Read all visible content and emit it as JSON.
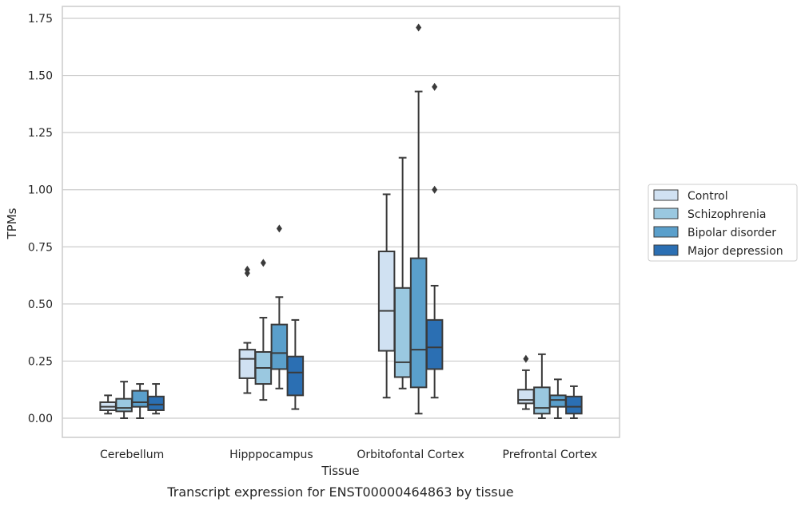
{
  "chart_data": {
    "type": "box",
    "caption": "Transcript expression for ENST00000464863 by tissue",
    "xlabel": "Tissue",
    "ylabel": "TPMs",
    "ylim": [
      -0.08,
      1.8
    ],
    "yticks": [
      "0.00",
      "0.25",
      "0.50",
      "0.75",
      "1.00",
      "1.25",
      "1.50",
      "1.75"
    ],
    "ytick_values": [
      0,
      0.25,
      0.5,
      0.75,
      1.0,
      1.25,
      1.5,
      1.75
    ],
    "grid": true,
    "legend_position": "right",
    "categories": [
      "Cerebellum",
      "Hipppocampus",
      "Orbitofontal Cortex",
      "Prefrontal Cortex"
    ],
    "series": [
      {
        "name": "Control",
        "color": "#d0e1f2",
        "boxes": [
          {
            "whisker_low": 0.02,
            "q1": 0.035,
            "median": 0.05,
            "q3": 0.07,
            "whisker_high": 0.1,
            "outliers": []
          },
          {
            "whisker_low": 0.11,
            "q1": 0.175,
            "median": 0.26,
            "q3": 0.3,
            "whisker_high": 0.33,
            "outliers": [
              0.635,
              0.65
            ]
          },
          {
            "whisker_low": 0.09,
            "q1": 0.295,
            "median": 0.47,
            "q3": 0.73,
            "whisker_high": 0.98,
            "outliers": []
          },
          {
            "whisker_low": 0.04,
            "q1": 0.065,
            "median": 0.08,
            "q3": 0.125,
            "whisker_high": 0.21,
            "outliers": [
              0.26
            ]
          }
        ]
      },
      {
        "name": "Schizophrenia",
        "color": "#9ac8e0",
        "boxes": [
          {
            "whisker_low": 0.0,
            "q1": 0.03,
            "median": 0.045,
            "q3": 0.085,
            "whisker_high": 0.16,
            "outliers": []
          },
          {
            "whisker_low": 0.08,
            "q1": 0.15,
            "median": 0.22,
            "q3": 0.29,
            "whisker_high": 0.44,
            "outliers": [
              0.68
            ]
          },
          {
            "whisker_low": 0.13,
            "q1": 0.18,
            "median": 0.245,
            "q3": 0.57,
            "whisker_high": 1.14,
            "outliers": []
          },
          {
            "whisker_low": 0.0,
            "q1": 0.02,
            "median": 0.045,
            "q3": 0.135,
            "whisker_high": 0.28,
            "outliers": []
          }
        ]
      },
      {
        "name": "Bipolar disorder",
        "color": "#5a9fcb",
        "boxes": [
          {
            "whisker_low": 0.0,
            "q1": 0.05,
            "median": 0.07,
            "q3": 0.12,
            "whisker_high": 0.15,
            "outliers": []
          },
          {
            "whisker_low": 0.13,
            "q1": 0.215,
            "median": 0.285,
            "q3": 0.41,
            "whisker_high": 0.53,
            "outliers": [
              0.83
            ]
          },
          {
            "whisker_low": 0.02,
            "q1": 0.135,
            "median": 0.3,
            "q3": 0.7,
            "whisker_high": 1.43,
            "outliers": [
              1.71
            ]
          },
          {
            "whisker_low": 0.0,
            "q1": 0.05,
            "median": 0.08,
            "q3": 0.1,
            "whisker_high": 0.17,
            "outliers": []
          }
        ]
      },
      {
        "name": "Major depression",
        "color": "#2b6fb3",
        "boxes": [
          {
            "whisker_low": 0.02,
            "q1": 0.035,
            "median": 0.06,
            "q3": 0.095,
            "whisker_high": 0.15,
            "outliers": []
          },
          {
            "whisker_low": 0.04,
            "q1": 0.1,
            "median": 0.2,
            "q3": 0.27,
            "whisker_high": 0.43,
            "outliers": []
          },
          {
            "whisker_low": 0.09,
            "q1": 0.215,
            "median": 0.31,
            "q3": 0.43,
            "whisker_high": 0.58,
            "outliers": [
              1.0,
              1.45
            ]
          },
          {
            "whisker_low": 0.0,
            "q1": 0.02,
            "median": 0.05,
            "q3": 0.095,
            "whisker_high": 0.14,
            "outliers": []
          }
        ]
      }
    ]
  }
}
